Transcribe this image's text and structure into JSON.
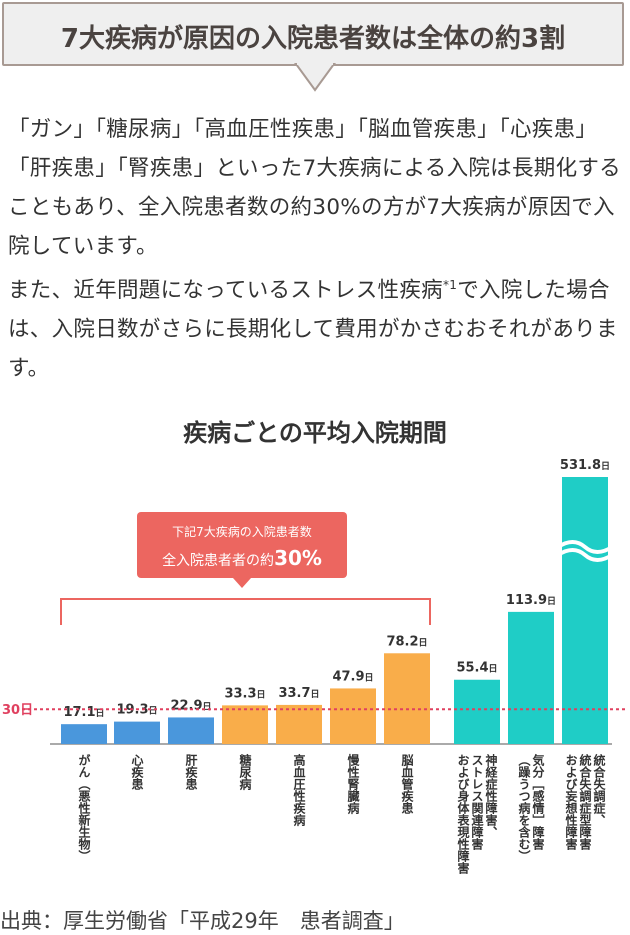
{
  "header": {
    "title": "7大疾病が原因の入院患者数は全体の約3割"
  },
  "body": {
    "para1": "「ガン」「糖尿病」「高血圧性疾患」「脳血管疾患」「心疾患」「肝疾患」「腎疾患」といった7大疾病による入院は長期化することもあり、全入院患者数の約30%の方が7大疾病が原因で入院しています。",
    "para2_before": "また、近年問題になっているストレス性疾病",
    "para2_sup": "*1",
    "para2_after": "で入院した場合は、入院日数がさらに長期化して費用がかさむおそれがあります。"
  },
  "chart_data": {
    "type": "bar",
    "title": "疾病ごとの平均入院期間",
    "unit": "日",
    "categories": [
      "がん（悪性新生物）",
      "心疾患",
      "肝疾患",
      "糖尿病",
      "高血圧性疾病",
      "慢性腎臓病",
      "脳血管疾患",
      "神経症性障害、ストレス関連障害および身体表現性障害",
      "気分［感情］障害（躁うつ病を含む）",
      "統合失調症、統合失調症型障害および妄想性障害"
    ],
    "label_lines": [
      [
        "がん（悪性新生物）"
      ],
      [
        "心疾患"
      ],
      [
        "肝疾患"
      ],
      [
        "糖尿病"
      ],
      [
        "高血圧性疾病"
      ],
      [
        "慢性腎臓病"
      ],
      [
        "脳血管疾患"
      ],
      [
        "神経症性障害、",
        "ストレス関連障害",
        "および身体表現性障害"
      ],
      [
        "気分［感情］障害",
        "（躁うつ病を含む）"
      ],
      [
        "統合失調症、",
        "統合失調症型障害",
        "および妄想性障害"
      ]
    ],
    "values": [
      17.1,
      19.3,
      22.9,
      33.3,
      33.7,
      47.9,
      78.2,
      55.4,
      113.9,
      531.8
    ],
    "value_labels": [
      "17.1",
      "19.3",
      "22.9",
      "33.3",
      "33.7",
      "47.9",
      "78.2",
      "55.4",
      "113.9",
      "531.8"
    ],
    "groups": [
      "seven_low",
      "seven_low",
      "seven_low",
      "seven_high",
      "seven_high",
      "seven_high",
      "seven_high",
      "stress",
      "stress",
      "stress"
    ],
    "colors": {
      "seven_low": "#4a97dc",
      "seven_high": "#f9ad4a",
      "stress": "#1fcdc6",
      "reference": "#e0405f",
      "callout": "#ec6660"
    },
    "axis_break_category": "統合失調症、統合失調症型障害および妄想性障害",
    "reference_line": {
      "value": 30,
      "label": "30日"
    },
    "callout": {
      "line1": "下記7大疾病の入院患者数",
      "line2_prefix": "全入院患者者の約",
      "line2_value": "30%"
    }
  },
  "source": "出典：厚生労働省「平成29年　患者調査」"
}
